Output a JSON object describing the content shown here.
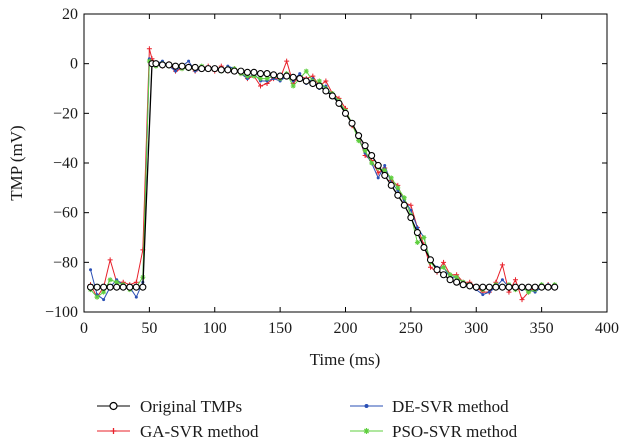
{
  "chart_data": {
    "type": "line",
    "xlabel": "Time (ms)",
    "ylabel": "TMP (mV)",
    "xlim": [
      0,
      400
    ],
    "ylim": [
      -100,
      20
    ],
    "xticks": [
      0,
      50,
      100,
      150,
      200,
      250,
      300,
      350,
      400
    ],
    "yticks": [
      -100,
      -80,
      -60,
      -40,
      -20,
      0,
      20
    ],
    "xtick_labels": [
      "0",
      "50",
      "100",
      "150",
      "200",
      "250",
      "300",
      "350",
      "400"
    ],
    "ytick_labels": [
      "−100",
      "−80",
      "−60",
      "−40",
      "−20",
      "0",
      "20"
    ],
    "grid": false,
    "legend_position": "bottom",
    "series": [
      {
        "name": "Original TMPs",
        "color": "#000000",
        "marker": "circle",
        "x": [
          5,
          10,
          15,
          20,
          25,
          30,
          35,
          40,
          45,
          52,
          55,
          60,
          65,
          70,
          75,
          80,
          85,
          90,
          95,
          100,
          105,
          110,
          115,
          120,
          125,
          130,
          135,
          140,
          145,
          150,
          155,
          160,
          165,
          170,
          175,
          180,
          185,
          190,
          195,
          200,
          205,
          210,
          215,
          220,
          225,
          230,
          235,
          240,
          245,
          250,
          255,
          260,
          265,
          270,
          275,
          280,
          285,
          290,
          295,
          300,
          305,
          310,
          315,
          320,
          325,
          330,
          335,
          340,
          345,
          350,
          355,
          360
        ],
        "y": [
          -90,
          -90,
          -90,
          -90,
          -90,
          -90,
          -90,
          -90,
          -90,
          0,
          0,
          -0.5,
          -0.5,
          -1,
          -1,
          -1.5,
          -1.5,
          -2,
          -2,
          -2,
          -2.5,
          -2.5,
          -3,
          -3,
          -3.5,
          -3.5,
          -4,
          -4,
          -4.5,
          -5,
          -5,
          -5.5,
          -6,
          -7,
          -8,
          -9,
          -11,
          -13,
          -16,
          -20,
          -24,
          -29,
          -33,
          -37,
          -41,
          -45,
          -49,
          -53,
          -57,
          -62,
          -68,
          -74,
          -79,
          -83,
          -85,
          -87,
          -88,
          -89,
          -89.5,
          -90,
          -90,
          -90,
          -90,
          -90,
          -90,
          -90,
          -90,
          -90,
          -90,
          -90,
          -90,
          -90
        ]
      },
      {
        "name": "GA-SVR method",
        "color": "#e8202a",
        "marker": "plus",
        "x": [
          5,
          10,
          15,
          20,
          25,
          30,
          35,
          40,
          45,
          50,
          52,
          55,
          60,
          65,
          70,
          75,
          80,
          85,
          90,
          95,
          100,
          105,
          110,
          115,
          120,
          125,
          130,
          135,
          140,
          145,
          150,
          155,
          160,
          165,
          170,
          175,
          180,
          185,
          190,
          195,
          200,
          205,
          210,
          215,
          220,
          225,
          230,
          235,
          240,
          245,
          250,
          255,
          260,
          265,
          270,
          275,
          280,
          285,
          290,
          295,
          300,
          305,
          310,
          315,
          320,
          325,
          330,
          335,
          340,
          345,
          350,
          355,
          360
        ],
        "y": [
          -89,
          -94,
          -90,
          -79,
          -88,
          -88,
          -89,
          -88,
          -75,
          6,
          2,
          0,
          -1,
          0,
          -3,
          -2,
          -1,
          -3,
          -2,
          -1,
          -3,
          -1,
          -3,
          -2,
          -4,
          -6,
          -5,
          -9,
          -8,
          -6,
          -6,
          1,
          -8,
          -5,
          -6,
          -5,
          -9,
          -7,
          -12,
          -14,
          -18,
          -25,
          -29,
          -37,
          -39,
          -44,
          -42,
          -47,
          -49,
          -56,
          -57,
          -66,
          -73,
          -82,
          -84,
          -80,
          -85,
          -85,
          -88,
          -88,
          -90,
          -92,
          -92,
          -88,
          -81,
          -92,
          -87,
          -95,
          -92,
          -90,
          -90,
          -89,
          -90
        ]
      },
      {
        "name": "DE-SVR method",
        "color": "#2a4fb5",
        "marker": "dot",
        "x": [
          5,
          10,
          15,
          20,
          25,
          30,
          35,
          40,
          45,
          50,
          52,
          55,
          60,
          65,
          70,
          75,
          80,
          85,
          90,
          95,
          100,
          105,
          110,
          115,
          120,
          125,
          130,
          135,
          140,
          145,
          150,
          155,
          160,
          165,
          170,
          175,
          180,
          185,
          190,
          195,
          200,
          205,
          210,
          215,
          220,
          225,
          230,
          235,
          240,
          245,
          250,
          255,
          260,
          265,
          270,
          275,
          280,
          285,
          290,
          295,
          300,
          305,
          310,
          315,
          320,
          325,
          330,
          335,
          340,
          345,
          350,
          355,
          360
        ],
        "y": [
          -83,
          -93,
          -95,
          -90,
          -87,
          -89,
          -90,
          -94,
          -88,
          2,
          0,
          0,
          1,
          -1,
          -3,
          -1,
          1,
          -3,
          -2,
          -2,
          -2,
          -3,
          -1,
          -2,
          -4,
          -6,
          -4,
          -7,
          -7,
          -6,
          -7,
          -5,
          -7,
          -4,
          -8,
          -6,
          -10,
          -9,
          -13,
          -15,
          -20,
          -24,
          -30,
          -36,
          -40,
          -46,
          -41,
          -48,
          -51,
          -55,
          -59,
          -66,
          -70,
          -80,
          -82,
          -82,
          -86,
          -86,
          -88,
          -89,
          -91,
          -93,
          -92,
          -90,
          -87,
          -90,
          -90,
          -91,
          -91,
          -92,
          -90,
          -89,
          -90
        ]
      },
      {
        "name": "PSO-SVR method",
        "color": "#5fcf3f",
        "marker": "asterisk",
        "x": [
          5,
          10,
          15,
          20,
          25,
          30,
          35,
          40,
          45,
          50,
          52,
          55,
          60,
          65,
          70,
          75,
          80,
          85,
          90,
          95,
          100,
          105,
          110,
          115,
          120,
          125,
          130,
          135,
          140,
          145,
          150,
          155,
          160,
          165,
          170,
          175,
          180,
          185,
          190,
          195,
          200,
          205,
          210,
          215,
          220,
          225,
          230,
          235,
          240,
          245,
          250,
          255,
          260,
          265,
          270,
          275,
          280,
          285,
          290,
          295,
          300,
          305,
          310,
          315,
          320,
          325,
          330,
          335,
          340,
          345,
          350,
          355,
          360
        ],
        "y": [
          -91,
          -94,
          -92,
          -87,
          -88,
          -89,
          -91,
          -90,
          -86,
          1,
          0,
          -1,
          0,
          -1,
          -1,
          -2,
          -2,
          -2,
          -1,
          -2,
          -2,
          -3,
          -2,
          -2,
          -4,
          -5,
          -5,
          -6,
          -6,
          -5,
          -6,
          -4,
          -9,
          -6,
          -3,
          -7,
          -7,
          -10,
          -12,
          -15,
          -19,
          -24,
          -31,
          -35,
          -40,
          -42,
          -43,
          -46,
          -50,
          -54,
          -61,
          -72,
          -70,
          -80,
          -83,
          -82,
          -85,
          -86,
          -88,
          -89,
          -90,
          -91,
          -90,
          -89,
          -90,
          -89,
          -91,
          -90,
          -92,
          -91,
          -89,
          -90,
          -89
        ]
      }
    ]
  }
}
